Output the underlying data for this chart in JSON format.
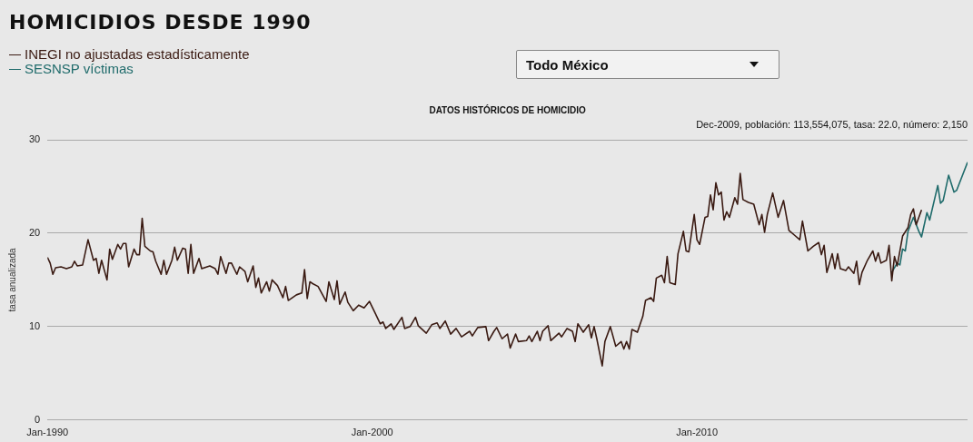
{
  "chart_data": {
    "type": "line",
    "title": "HOMICIDIOS DESDE 1990",
    "subtitle": "DATOS HISTÓRICOS DE HOMICIDIO",
    "ylabel": "tasa anualizada",
    "annotations": [
      "Todo México",
      "Dec-2009, población: 113,554,075, tasa: 22.0, número: 2,150"
    ],
    "series": [
      {
        "name": "INEGI no ajustadas estadísticamente",
        "color": "#3a1a12",
        "x": [
          "1990-01",
          "1990-02",
          "1990-03",
          "1990-04",
          "1990-06",
          "1990-08",
          "1990-10",
          "1990-11",
          "1990-12",
          "1991-02",
          "1991-04",
          "1991-06",
          "1991-07",
          "1991-08",
          "1991-09",
          "1991-11",
          "1991-12",
          "1992-01",
          "1992-03",
          "1992-04",
          "1992-05",
          "1992-06",
          "1992-07",
          "1992-09",
          "1992-10",
          "1992-11",
          "1992-12",
          "1993-01",
          "1993-03",
          "1993-04",
          "1993-05",
          "1993-07",
          "1993-08",
          "1993-09",
          "1993-11",
          "1993-12",
          "1994-01",
          "1994-03",
          "1994-04",
          "1994-05",
          "1994-06",
          "1994-07",
          "1994-09",
          "1994-10",
          "1995-01",
          "1995-03",
          "1995-04",
          "1995-05",
          "1995-07",
          "1995-08",
          "1995-09",
          "1995-11",
          "1995-12",
          "1996-02",
          "1996-03",
          "1996-05",
          "1996-06",
          "1996-07",
          "1996-08",
          "1996-10",
          "1996-11",
          "1996-12",
          "1997-02",
          "1997-04",
          "1997-05",
          "1997-06",
          "1997-09",
          "1997-11",
          "1997-12",
          "1998-01",
          "1998-02",
          "1998-03",
          "1998-05",
          "1998-08",
          "1998-09",
          "1998-11",
          "1998-12",
          "1999-01",
          "1999-03",
          "1999-04",
          "1999-06",
          "1999-08",
          "1999-10",
          "1999-12",
          "2000-02",
          "2000-04",
          "2000-05",
          "2000-06",
          "2000-08",
          "2000-09",
          "2000-12",
          "2001-01",
          "2001-03",
          "2001-05",
          "2001-06",
          "2001-09",
          "2001-11",
          "2002-01",
          "2002-02",
          "2002-04",
          "2002-06",
          "2002-08",
          "2002-10",
          "2003-01",
          "2003-02",
          "2003-04",
          "2003-07",
          "2003-08",
          "2003-10",
          "2003-11",
          "2004-01",
          "2004-03",
          "2004-04",
          "2004-06",
          "2004-07",
          "2004-10",
          "2004-11",
          "2004-12",
          "2005-02",
          "2005-03",
          "2005-04",
          "2005-06",
          "2005-07",
          "2005-10",
          "2005-11",
          "2006-01",
          "2006-03",
          "2006-04",
          "2006-05",
          "2006-07",
          "2006-09",
          "2006-10",
          "2006-11",
          "2006-12",
          "2007-02",
          "2007-03",
          "2007-05",
          "2007-07",
          "2007-09",
          "2007-10",
          "2007-11",
          "2007-12",
          "2008-01",
          "2008-03",
          "2008-05",
          "2008-06",
          "2008-08",
          "2008-09",
          "2008-10",
          "2008-12",
          "2009-01",
          "2009-02",
          "2009-03",
          "2009-05",
          "2009-06",
          "2009-08",
          "2009-09",
          "2009-10",
          "2009-12",
          "2010-01",
          "2010-02",
          "2010-04",
          "2010-05",
          "2010-06",
          "2010-07",
          "2010-08",
          "2010-09",
          "2010-10",
          "2010-11",
          "2010-12",
          "2011-01",
          "2011-03",
          "2011-04",
          "2011-05",
          "2011-06",
          "2011-08",
          "2011-10",
          "2011-12",
          "2012-01",
          "2012-02",
          "2012-03",
          "2012-05",
          "2012-07",
          "2012-09",
          "2012-11",
          "2013-01",
          "2013-03",
          "2013-04",
          "2013-06",
          "2013-08",
          "2013-10",
          "2013-11",
          "2013-12",
          "2014-01",
          "2014-03",
          "2014-04",
          "2014-05",
          "2014-06",
          "2014-08",
          "2014-09",
          "2014-11",
          "2014-12",
          "2015-01",
          "2015-02",
          "2015-04",
          "2015-06",
          "2015-07",
          "2015-08",
          "2015-09",
          "2015-11",
          "2015-12",
          "2016-01",
          "2016-02",
          "2016-03",
          "2016-05",
          "2016-07",
          "2016-08",
          "2016-09",
          "2016-10",
          "2016-12"
        ],
        "values": [
          17.4,
          16.8,
          15.6,
          16.3,
          16.4,
          16.2,
          16.4,
          17.0,
          16.5,
          16.6,
          19.3,
          17.1,
          17.3,
          15.7,
          17.1,
          15.0,
          18.3,
          17.2,
          18.8,
          18.3,
          18.9,
          18.9,
          16.4,
          18.3,
          17.7,
          17.7,
          21.6,
          18.6,
          18.1,
          18.0,
          17.0,
          15.6,
          17.1,
          15.6,
          17.1,
          18.5,
          17.1,
          18.4,
          18.3,
          15.7,
          18.8,
          15.7,
          17.3,
          16.2,
          16.5,
          16.2,
          15.6,
          17.5,
          15.7,
          16.8,
          16.8,
          15.6,
          16.4,
          15.9,
          14.8,
          16.5,
          14.2,
          15.2,
          13.6,
          14.8,
          13.8,
          15.0,
          14.4,
          13.1,
          14.3,
          12.8,
          13.4,
          13.6,
          16.1,
          13.0,
          14.8,
          14.6,
          14.3,
          12.7,
          14.8,
          12.9,
          14.9,
          12.4,
          13.7,
          12.6,
          11.7,
          12.3,
          12.0,
          12.7,
          11.5,
          10.3,
          10.5,
          9.8,
          10.3,
          9.7,
          11.0,
          9.8,
          10.0,
          11.0,
          10.1,
          9.3,
          10.2,
          10.4,
          9.8,
          10.6,
          9.2,
          9.8,
          8.9,
          9.5,
          9.0,
          9.9,
          10.0,
          8.5,
          9.5,
          9.9,
          8.7,
          9.2,
          7.7,
          9.2,
          8.4,
          8.5,
          9.0,
          8.4,
          9.5,
          8.5,
          9.5,
          10.1,
          8.5,
          9.3,
          8.9,
          9.8,
          9.5,
          8.4,
          10.3,
          9.4,
          10.2,
          8.8,
          10.0,
          8.7,
          5.8,
          8.4,
          10.0,
          7.9,
          8.4,
          7.6,
          8.4,
          7.6,
          9.7,
          9.4,
          11.1,
          12.8,
          13.1,
          12.7,
          15.2,
          15.5,
          14.7,
          17.5,
          14.7,
          14.5,
          17.8,
          20.2,
          18.1,
          18.0,
          22.0,
          19.3,
          18.8,
          21.7,
          21.8,
          24.1,
          22.5,
          25.4,
          24.1,
          24.4,
          21.4,
          22.3,
          21.7,
          23.8,
          23.1,
          26.4,
          23.6,
          23.3,
          23.1,
          20.9,
          22.0,
          20.1,
          22.0,
          24.3,
          21.7,
          23.5,
          20.3,
          19.8,
          19.3,
          21.3,
          18.1,
          18.6,
          19.0,
          17.7,
          18.7,
          15.8,
          17.8,
          16.2,
          17.8,
          16.2,
          16.0,
          16.4,
          15.7,
          17.0,
          14.5,
          15.8,
          17.1,
          18.1,
          17.0,
          17.9,
          16.8,
          17.1,
          18.7,
          14.9,
          17.5,
          16.5,
          19.7,
          20.6,
          22.0,
          22.6,
          20.9,
          22.5
        ]
      },
      {
        "name": "SESNSP víctimas",
        "color": "#1f6b6b",
        "x": [
          "2016-01",
          "2016-03",
          "2016-04",
          "2016-05",
          "2016-06",
          "2016-07",
          "2016-09",
          "2016-11",
          "2016-12",
          "2017-02",
          "2017-03",
          "2017-06",
          "2017-07",
          "2017-08",
          "2017-10",
          "2017-12",
          "2018-01",
          "2018-05"
        ],
        "values": [
          15.8,
          16.8,
          16.6,
          18.3,
          18.1,
          20.2,
          21.7,
          20.2,
          19.6,
          22.2,
          21.4,
          25.1,
          23.2,
          23.5,
          26.2,
          24.4,
          24.6,
          27.6
        ]
      }
    ],
    "xlim": [
      "1990-01",
      "2018-05"
    ],
    "xticks": [
      {
        "value": "1990-01",
        "label": "Jan-1990"
      },
      {
        "value": "2000-01",
        "label": "Jan-2000"
      },
      {
        "value": "2010-01",
        "label": "Jan-2010"
      }
    ],
    "ylim": [
      0,
      30
    ],
    "yticks": [
      0,
      10,
      20,
      30
    ],
    "grid": "y",
    "legend": "top left",
    "marker": "none",
    "line_style": "solid"
  }
}
